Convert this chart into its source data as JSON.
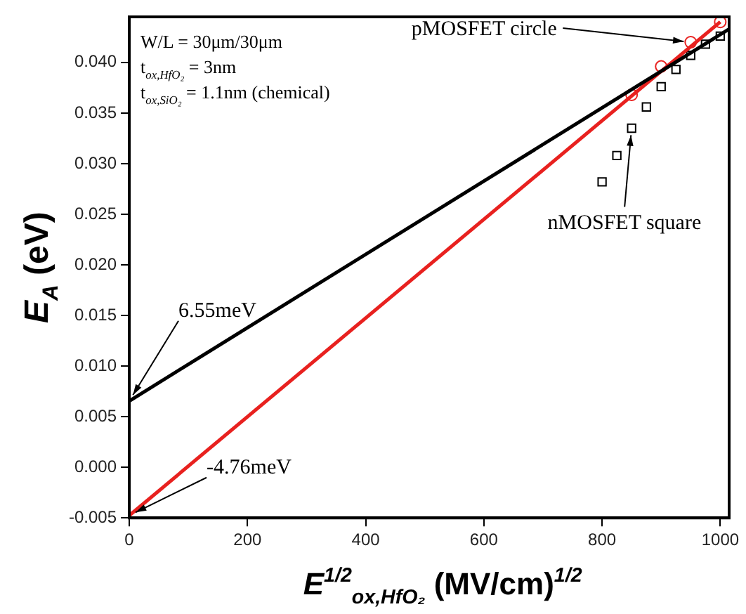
{
  "chart_data": {
    "type": "scatter",
    "xlabel": "E$^{1/2}$$_{ox,HfO₂}$ (MV/cm)$^{1/2}$",
    "ylabel": "E$_{A}$ (eV)",
    "xlim": [
      0,
      1015
    ],
    "ylim": [
      -0.005,
      0.0445
    ],
    "xticks": [
      0,
      200,
      400,
      600,
      800,
      1000
    ],
    "yticks": [
      {
        "value": -0.005,
        "label": "-0.005"
      },
      {
        "value": 0,
        "label": "0.000"
      },
      {
        "value": 0.005,
        "label": "0.005"
      },
      {
        "value": 0.01,
        "label": "0.010"
      },
      {
        "value": 0.015,
        "label": "0.015"
      },
      {
        "value": 0.02,
        "label": "0.020"
      },
      {
        "value": 0.025,
        "label": "0.025"
      },
      {
        "value": 0.03,
        "label": "0.030"
      },
      {
        "value": 0.035,
        "label": "0.035"
      },
      {
        "value": 0.04,
        "label": "0.040"
      }
    ],
    "grid": false,
    "legend": false,
    "series": [
      {
        "type": "line",
        "marker": "none",
        "color": "#000000",
        "x": [
          0,
          1015
        ],
        "values": [
          0.00655,
          0.0433
        ]
      },
      {
        "type": "line",
        "marker": "none",
        "color": "#e8211f",
        "x": [
          0,
          1000
        ],
        "values": [
          -0.00476,
          0.044
        ]
      },
      {
        "marker": "square",
        "color": "#000000",
        "x": [
          800,
          825,
          850,
          875,
          900,
          925,
          950,
          975,
          1000
        ],
        "values": [
          0.0282,
          0.0308,
          0.0335,
          0.0356,
          0.0376,
          0.0393,
          0.0407,
          0.0418,
          0.0426
        ]
      },
      {
        "marker": "circle",
        "color": "#e8211f",
        "x": [
          850,
          900,
          950,
          1000
        ],
        "values": [
          0.0368,
          0.0396,
          0.042,
          0.044
        ]
      }
    ],
    "annotations": [
      "W/L = 30μm/30μm",
      "t$_{ox,HfO₂}$ = 3nm",
      "t$_{ox,SiO₂}$ = 1.1nm (chemical)",
      {
        "text": "6.55meV",
        "x": 0,
        "y": 0.00655
      },
      {
        "text": "-4.76meV",
        "x": 0,
        "y": -0.00476
      },
      {
        "text": "pMOSFET circle",
        "x": 950,
        "y": 0.042
      },
      {
        "text": "nMOSFET square",
        "x": 850,
        "y": 0.0335
      }
    ]
  }
}
